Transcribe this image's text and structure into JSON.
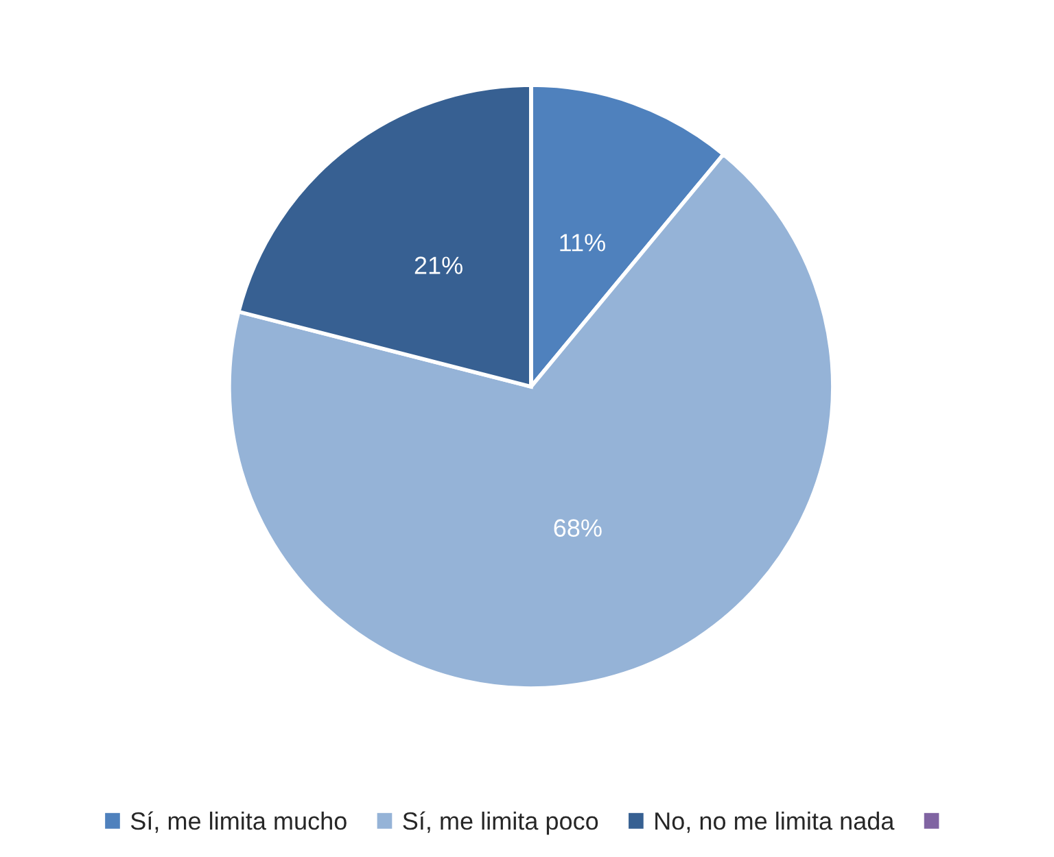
{
  "chart_data": {
    "type": "pie",
    "categories": [
      "Sí, me limita mucho",
      "Sí, me limita poco",
      "No, no me limita nada",
      null
    ],
    "values": [
      11,
      68,
      21,
      0
    ],
    "colors": [
      "#4f81bd",
      "#95b3d7",
      "#376092",
      "#8064a2"
    ],
    "value_labels": [
      "11%",
      "68%",
      "21%",
      null
    ],
    "legend": "bottom"
  }
}
